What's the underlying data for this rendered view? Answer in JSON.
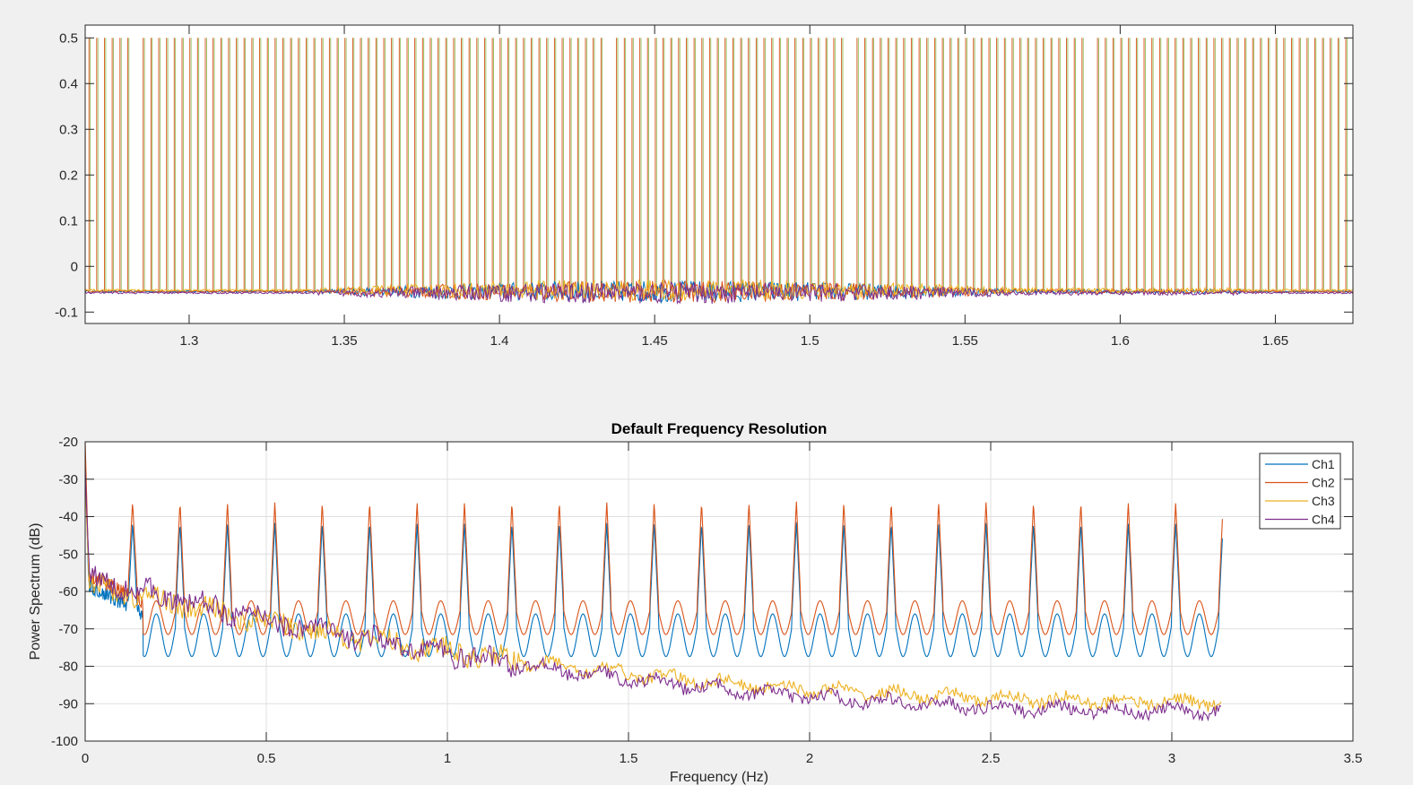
{
  "chart_data": [
    {
      "type": "line",
      "title": "",
      "xlabel": "",
      "ylabel": "",
      "xlim": [
        1.2665,
        1.675
      ],
      "ylim": [
        -0.125,
        0.528
      ],
      "grid": false,
      "xticks": [
        "1.3",
        "1.35",
        "1.4",
        "1.45",
        "1.5",
        "1.55",
        "1.6",
        "1.65"
      ],
      "xtick_values": [
        1.3,
        1.35,
        1.4,
        1.45,
        1.5,
        1.55,
        1.6,
        1.65
      ],
      "yticks": [
        "-0.1",
        "0",
        "0.1",
        "0.2",
        "0.3",
        "0.4",
        "0.5"
      ],
      "ytick_values": [
        -0.1,
        0,
        0.1,
        0.2,
        0.3,
        0.4,
        0.5
      ],
      "pulse": {
        "high": 0.5,
        "spacing": 0.0025
      },
      "baseline": -0.055,
      "noise_region": [
        1.34,
        1.57
      ],
      "colors": [
        "#0072bd",
        "#d95319",
        "#edb120",
        "#7e2f8e"
      ]
    },
    {
      "type": "line",
      "title": "Default Frequency Resolution",
      "xlabel": "Frequency (Hz)",
      "ylabel": "Power Spectrum (dB)",
      "xlim": [
        0,
        3.5
      ],
      "ylim": [
        -100,
        -20
      ],
      "grid": true,
      "xticks": [
        "0",
        "0.5",
        "1",
        "1.5",
        "2",
        "2.5",
        "3",
        "3.5"
      ],
      "xtick_values": [
        0,
        0.5,
        1,
        1.5,
        2,
        2.5,
        3,
        3.5
      ],
      "yticks": [
        "-100",
        "-90",
        "-80",
        "-70",
        "-60",
        "-50",
        "-40",
        "-30",
        "-20"
      ],
      "ytick_values": [
        -100,
        -90,
        -80,
        -70,
        -60,
        -50,
        -40,
        -30,
        -20
      ],
      "legend_position": "top-right",
      "series": [
        {
          "name": "Ch1",
          "color": "#0072bd",
          "peak_db": -41.5,
          "trough_db": -78,
          "shoulder_db": -66,
          "peak_spacing_hz": 0.1309,
          "x_end": 3.14
        },
        {
          "name": "Ch2",
          "color": "#d95319",
          "peak_db": -36,
          "trough_db": -72,
          "shoulder_db": -62.5,
          "peak_spacing_hz": 0.1309,
          "x_end": 3.14
        },
        {
          "name": "Ch3",
          "color": "#edb120",
          "start_db": -58,
          "end_db": -89.5,
          "x_end": 3.14
        },
        {
          "name": "Ch4",
          "color": "#7e2f8e",
          "start_db": -56,
          "end_db": -92,
          "x_end": 3.14
        }
      ]
    }
  ]
}
